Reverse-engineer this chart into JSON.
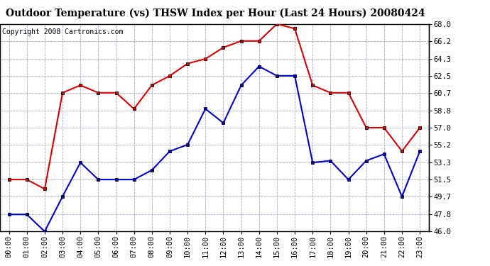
{
  "title": "Outdoor Temperature (vs) THSW Index per Hour (Last 24 Hours) 20080424",
  "copyright": "Copyright 2008 Cartronics.com",
  "hours": [
    "00:00",
    "01:00",
    "02:00",
    "03:00",
    "04:00",
    "05:00",
    "06:00",
    "07:00",
    "08:00",
    "09:00",
    "10:00",
    "11:00",
    "12:00",
    "13:00",
    "14:00",
    "15:00",
    "16:00",
    "17:00",
    "18:00",
    "19:00",
    "20:00",
    "21:00",
    "22:00",
    "23:00"
  ],
  "red_data": [
    51.5,
    51.5,
    50.5,
    60.7,
    61.5,
    60.7,
    60.7,
    59.0,
    61.5,
    62.5,
    63.8,
    64.3,
    65.5,
    66.2,
    66.2,
    68.0,
    67.5,
    61.5,
    60.7,
    60.7,
    57.0,
    57.0,
    54.5,
    57.0
  ],
  "blue_data": [
    47.8,
    47.8,
    46.0,
    49.7,
    53.3,
    51.5,
    51.5,
    51.5,
    52.5,
    54.5,
    55.2,
    59.0,
    57.5,
    61.5,
    63.5,
    62.5,
    62.5,
    53.3,
    53.5,
    51.5,
    53.5,
    54.2,
    49.7,
    54.5
  ],
  "ylim_min": 46.0,
  "ylim_max": 68.0,
  "yticks": [
    46.0,
    47.8,
    49.7,
    51.5,
    53.3,
    55.2,
    57.0,
    58.8,
    60.7,
    62.5,
    64.3,
    66.2,
    68.0
  ],
  "red_color": "#dd0000",
  "blue_color": "#0000cc",
  "bg_color": "#ffffff",
  "plot_bg": "#ffffff",
  "grid_color": "#aaaacc",
  "title_color": "#000000",
  "marker": "s",
  "marker_size": 3,
  "line_width": 1.5,
  "title_fontsize": 10,
  "tick_fontsize": 7.5,
  "copyright_fontsize": 7
}
